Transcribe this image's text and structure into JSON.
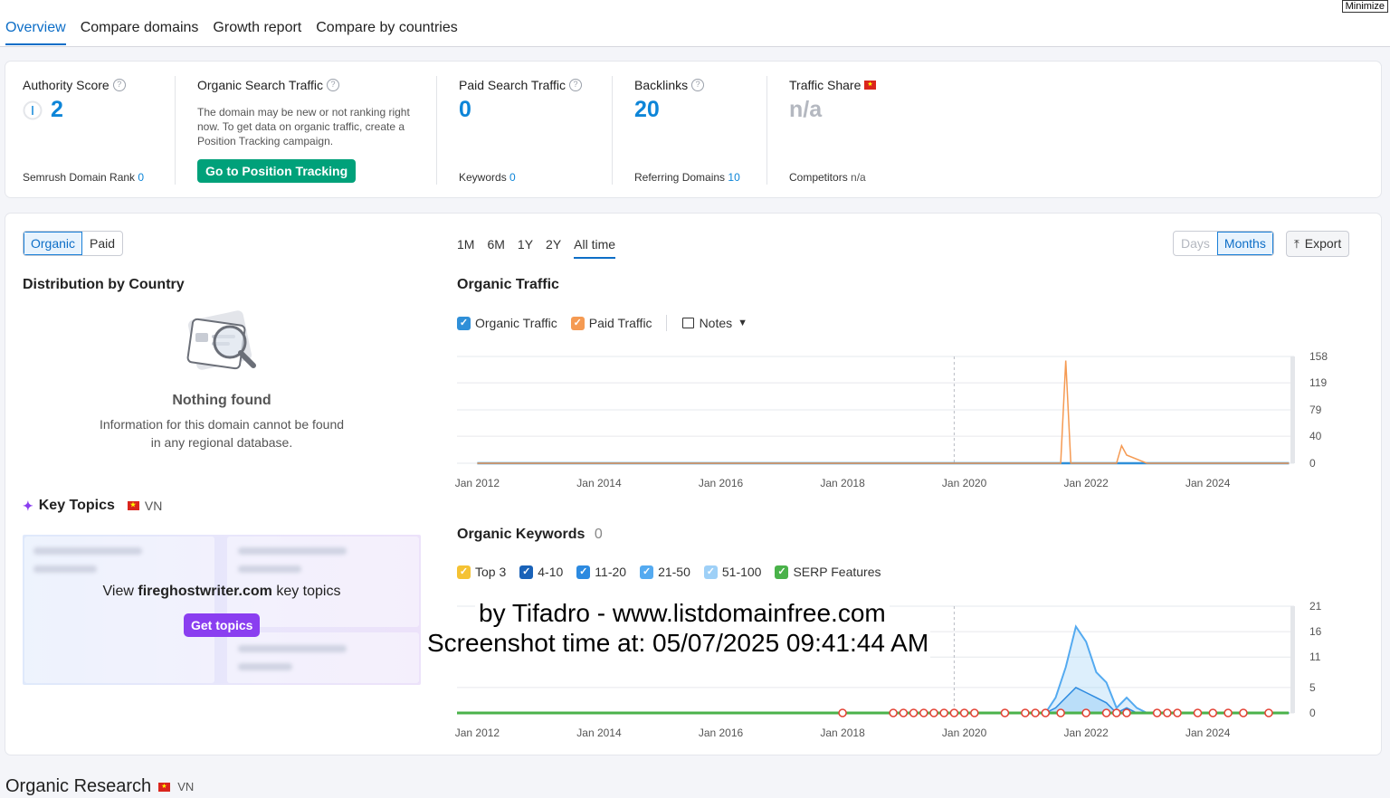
{
  "tabs": [
    "Overview",
    "Compare domains",
    "Growth report",
    "Compare by countries"
  ],
  "minimize_label": "Minimize",
  "metrics": {
    "authority": {
      "label": "Authority Score",
      "value": "2",
      "sub_label": "Semrush Domain Rank",
      "sub_value": "0"
    },
    "organic": {
      "label": "Organic Search Traffic",
      "note": "The domain may be new or not ranking right now. To get data on organic traffic, create a Position Tracking campaign.",
      "button": "Go to Position Tracking"
    },
    "paid": {
      "label": "Paid Search Traffic",
      "value": "0",
      "sub_label": "Keywords",
      "sub_value": "0"
    },
    "backlinks": {
      "label": "Backlinks",
      "value": "20",
      "sub_label": "Referring Domains",
      "sub_value": "10"
    },
    "traffic_share": {
      "label": "Traffic Share",
      "value": "n/a",
      "sub_label": "Competitors",
      "sub_value": "n/a"
    }
  },
  "toggle": {
    "organic": "Organic",
    "paid": "Paid"
  },
  "distribution": {
    "title": "Distribution by Country",
    "empty_title": "Nothing found",
    "empty_text": "Information for this domain cannot be found in any regional database."
  },
  "key_topics": {
    "title": "Key Topics",
    "country": "VN",
    "prefix": "View",
    "domain": "fireghostwriter.com",
    "suffix": "key topics",
    "button": "Get topics"
  },
  "time_range": [
    "1M",
    "6M",
    "1Y",
    "2Y",
    "All time"
  ],
  "granularity": {
    "days": "Days",
    "months": "Months"
  },
  "export_label": "Export",
  "organic_traffic": {
    "title": "Organic Traffic",
    "legend": {
      "organic": "Organic Traffic",
      "paid": "Paid Traffic",
      "notes": "Notes"
    }
  },
  "organic_keywords": {
    "title": "Organic Keywords",
    "count": "0",
    "legend": [
      "Top 3",
      "4-10",
      "11-20",
      "21-50",
      "51-100",
      "SERP Features"
    ]
  },
  "colors": {
    "organic": "#2f8fd8",
    "paid": "#f59a52",
    "top3": "#f5c233",
    "r4_10": "#1a62b8",
    "r11_20": "#2c8ae0",
    "r21_50": "#54aaf0",
    "r51_100": "#9ed0f7",
    "serp": "#4ab24a"
  },
  "watermark": {
    "line1": "by Tifadro - www.listdomainfree.com",
    "line2": "Screenshot time at: 05/07/2025 09:41:44 AM"
  },
  "footer": {
    "title": "Organic Research",
    "country": "VN"
  },
  "chart_data": [
    {
      "type": "line",
      "title": "Organic Traffic",
      "x_ticks": [
        "Jan 2012",
        "Jan 2014",
        "Jan 2016",
        "Jan 2018",
        "Jan 2020",
        "Jan 2022",
        "Jan 2024"
      ],
      "y_ticks": [
        0,
        40,
        79,
        119,
        158
      ],
      "ylim": [
        0,
        158
      ],
      "x": [
        "2012-01",
        "2014-01",
        "2016-01",
        "2018-01",
        "2019-10",
        "2020-10",
        "2021-08",
        "2021-09",
        "2021-10",
        "2022-07",
        "2022-08",
        "2022-09",
        "2023-01",
        "2024-01",
        "2025-05"
      ],
      "series": [
        {
          "name": "Organic Traffic",
          "values": [
            0,
            0,
            0,
            0,
            0,
            0,
            0,
            0,
            0,
            0,
            0,
            0,
            0,
            0,
            0
          ]
        },
        {
          "name": "Paid Traffic",
          "values": [
            0,
            0,
            0,
            0,
            0,
            0,
            0,
            152,
            0,
            0,
            26,
            12,
            0,
            0,
            0
          ]
        }
      ]
    },
    {
      "type": "area",
      "title": "Organic Keywords",
      "x_ticks": [
        "Jan 2012",
        "Jan 2014",
        "Jan 2016",
        "Jan 2018",
        "Jan 2020",
        "Jan 2022",
        "Jan 2024"
      ],
      "y_ticks": [
        0,
        5,
        11,
        16,
        21
      ],
      "ylim": [
        0,
        21
      ],
      "x": [
        "2012-01",
        "2018-01",
        "2021-05",
        "2021-07",
        "2021-09",
        "2021-11",
        "2022-01",
        "2022-03",
        "2022-05",
        "2022-07",
        "2022-09",
        "2022-11",
        "2023-01",
        "2024-01",
        "2025-05"
      ],
      "series": [
        {
          "name": "51-100",
          "values": [
            0,
            0,
            0,
            3,
            9,
            17,
            14,
            8,
            6,
            1,
            3,
            1,
            0,
            0,
            0
          ]
        },
        {
          "name": "21-50",
          "values": [
            0,
            0,
            0,
            1,
            3,
            5,
            4,
            3,
            2,
            0,
            1,
            0,
            0,
            0,
            0
          ]
        }
      ]
    }
  ]
}
